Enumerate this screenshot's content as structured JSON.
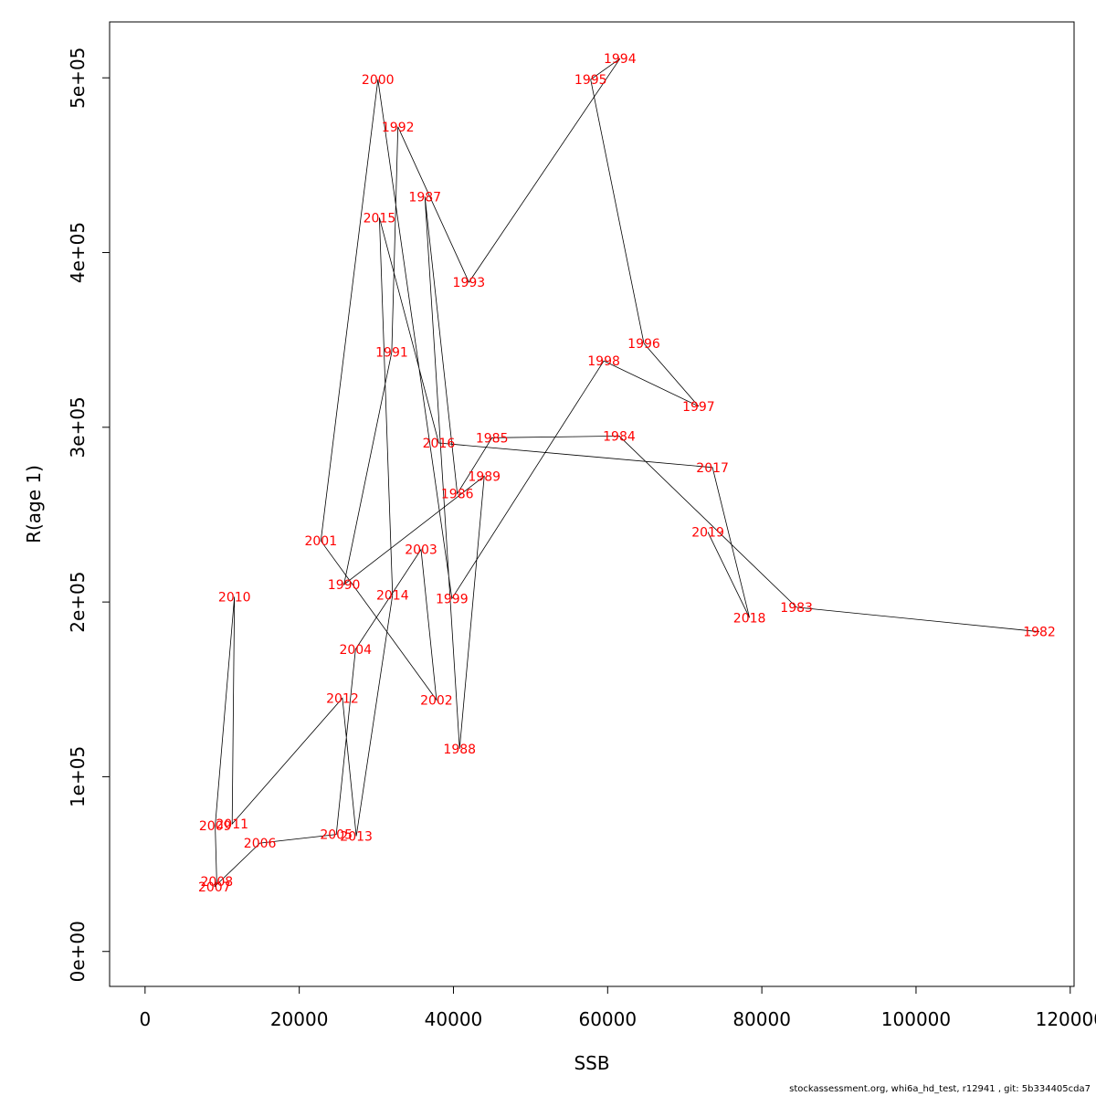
{
  "chart_data": {
    "type": "line",
    "xlabel": "SSB",
    "ylabel": "R(age 1)",
    "xlim": [
      -4600,
      120500
    ],
    "ylim": [
      -20000,
      532000
    ],
    "x_ticks": [
      0,
      20000,
      40000,
      60000,
      80000,
      100000,
      120000
    ],
    "x_tick_labels": [
      "0",
      "20000",
      "40000",
      "60000",
      "80000",
      "100000",
      "120000"
    ],
    "y_ticks": [
      0,
      100000,
      200000,
      300000,
      400000,
      500000
    ],
    "y_tick_labels": [
      "0e+00",
      "1e+05",
      "2e+05",
      "3e+05",
      "4e+05",
      "5e+05"
    ],
    "grid": false,
    "line_color": "#000000",
    "label_color": "#ff0000",
    "points": [
      {
        "year": "1982",
        "x": 116000,
        "y": 183000
      },
      {
        "year": "1983",
        "x": 84500,
        "y": 197000
      },
      {
        "year": "1984",
        "x": 61500,
        "y": 295000
      },
      {
        "year": "1985",
        "x": 45000,
        "y": 294000
      },
      {
        "year": "1986",
        "x": 40500,
        "y": 262000
      },
      {
        "year": "1987",
        "x": 36300,
        "y": 432000
      },
      {
        "year": "1988",
        "x": 40800,
        "y": 116000
      },
      {
        "year": "1989",
        "x": 44000,
        "y": 272000
      },
      {
        "year": "1990",
        "x": 25800,
        "y": 210000
      },
      {
        "year": "1991",
        "x": 32000,
        "y": 343000
      },
      {
        "year": "1992",
        "x": 32800,
        "y": 472000
      },
      {
        "year": "1993",
        "x": 42000,
        "y": 383000
      },
      {
        "year": "1994",
        "x": 61600,
        "y": 511000
      },
      {
        "year": "1995",
        "x": 57800,
        "y": 499000
      },
      {
        "year": "1996",
        "x": 64700,
        "y": 348000
      },
      {
        "year": "1997",
        "x": 71800,
        "y": 312000
      },
      {
        "year": "1998",
        "x": 59500,
        "y": 338000
      },
      {
        "year": "1999",
        "x": 39800,
        "y": 202000
      },
      {
        "year": "2000",
        "x": 30200,
        "y": 499000
      },
      {
        "year": "2001",
        "x": 22800,
        "y": 235000
      },
      {
        "year": "2002",
        "x": 37800,
        "y": 144000
      },
      {
        "year": "2003",
        "x": 35800,
        "y": 230000
      },
      {
        "year": "2004",
        "x": 27300,
        "y": 173000
      },
      {
        "year": "2005",
        "x": 24800,
        "y": 67000
      },
      {
        "year": "2006",
        "x": 14900,
        "y": 62000
      },
      {
        "year": "2007",
        "x": 9000,
        "y": 37000
      },
      {
        "year": "2008",
        "x": 9300,
        "y": 40000
      },
      {
        "year": "2009",
        "x": 9100,
        "y": 72000
      },
      {
        "year": "2010",
        "x": 11600,
        "y": 203000
      },
      {
        "year": "2011",
        "x": 11300,
        "y": 73000
      },
      {
        "year": "2012",
        "x": 25600,
        "y": 145000
      },
      {
        "year": "2013",
        "x": 27400,
        "y": 66000
      },
      {
        "year": "2014",
        "x": 32100,
        "y": 204000
      },
      {
        "year": "2015",
        "x": 30400,
        "y": 420000
      },
      {
        "year": "2016",
        "x": 38100,
        "y": 291000
      },
      {
        "year": "2017",
        "x": 73600,
        "y": 277000
      },
      {
        "year": "2018",
        "x": 78400,
        "y": 191000
      },
      {
        "year": "2019",
        "x": 73000,
        "y": 240000
      }
    ]
  },
  "footer": "stockassessment.org, whi6a_hd_test, r12941 , git: 5b334405cda7"
}
